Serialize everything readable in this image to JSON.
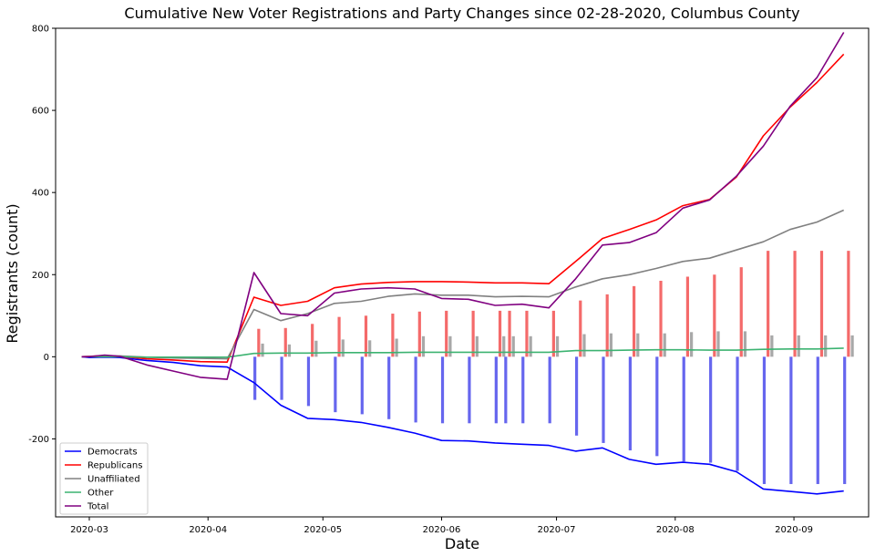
{
  "chart_data": {
    "type": "line",
    "title": "Cumulative New Voter Registrations and Party Changes since 02-28-2020, Columbus County",
    "xlabel": "Date",
    "ylabel": "Registrants (count)",
    "ylim": [
      -390,
      800
    ],
    "yticks": [
      -200,
      0,
      200,
      400,
      600,
      800
    ],
    "xlim": [
      -6.8,
      205.5
    ],
    "xticks": [
      {
        "day": 2,
        "label": "2020-03"
      },
      {
        "day": 33,
        "label": "2020-04"
      },
      {
        "day": 63,
        "label": "2020-05"
      },
      {
        "day": 94,
        "label": "2020-06"
      },
      {
        "day": 124,
        "label": "2020-07"
      },
      {
        "day": 155,
        "label": "2020-08"
      },
      {
        "day": 186,
        "label": "2020-09"
      }
    ],
    "legend_position": "lower-left",
    "series": [
      {
        "name": "Democrats",
        "color": "#0000ff",
        "x": [
          0,
          2,
          6,
          10,
          17,
          24,
          31,
          38,
          45,
          52,
          59,
          66,
          73,
          80,
          87,
          94,
          101,
          108,
          115,
          122,
          129,
          136,
          143,
          150,
          157,
          164,
          171,
          178,
          185,
          192,
          199
        ],
        "values": [
          0,
          -2,
          -1,
          -2,
          -9,
          -14,
          -22,
          -25,
          -63,
          -118,
          -150,
          -153,
          -160,
          -172,
          -186,
          -204,
          -205,
          -210,
          -213,
          -216,
          -230,
          -222,
          -250,
          -262,
          -257,
          -262,
          -280,
          -322,
          -328,
          -334,
          -327
        ]
      },
      {
        "name": "Republicans",
        "color": "#ff0000",
        "x": [
          0,
          2,
          6,
          10,
          17,
          24,
          31,
          38,
          45,
          52,
          59,
          66,
          73,
          80,
          87,
          94,
          101,
          108,
          115,
          122,
          129,
          136,
          143,
          150,
          157,
          164,
          171,
          178,
          185,
          192,
          199
        ],
        "values": [
          0,
          1,
          3,
          1,
          -5,
          -8,
          -12,
          -13,
          145,
          125,
          135,
          168,
          177,
          181,
          183,
          183,
          182,
          180,
          180,
          178,
          232,
          288,
          310,
          333,
          368,
          383,
          438,
          538,
          608,
          668,
          737
        ]
      },
      {
        "name": "Unaffiliated",
        "color": "#808080",
        "x": [
          0,
          2,
          6,
          10,
          17,
          24,
          31,
          38,
          45,
          52,
          59,
          66,
          73,
          80,
          87,
          94,
          101,
          108,
          115,
          122,
          129,
          136,
          143,
          150,
          157,
          164,
          171,
          178,
          185,
          192,
          199
        ],
        "values": [
          0,
          1,
          2,
          2,
          -1,
          -3,
          -4,
          -5,
          115,
          88,
          105,
          130,
          135,
          147,
          153,
          150,
          150,
          146,
          147,
          146,
          170,
          190,
          200,
          215,
          232,
          240,
          260,
          280,
          310,
          328,
          357
        ]
      },
      {
        "name": "Other",
        "color": "#3cb371",
        "x": [
          0,
          2,
          6,
          10,
          17,
          24,
          31,
          38,
          45,
          52,
          59,
          66,
          73,
          80,
          87,
          94,
          101,
          108,
          115,
          122,
          129,
          136,
          143,
          150,
          157,
          164,
          171,
          178,
          185,
          192,
          199
        ],
        "values": [
          0,
          0,
          0,
          0,
          -1,
          -1,
          -1,
          -1,
          8,
          9,
          9,
          10,
          10,
          10,
          11,
          11,
          11,
          11,
          11,
          11,
          15,
          15,
          16,
          17,
          17,
          16,
          16,
          18,
          19,
          19,
          21
        ]
      },
      {
        "name": "Total",
        "color": "#800080",
        "x": [
          0,
          2,
          6,
          10,
          17,
          24,
          31,
          38,
          45,
          52,
          59,
          66,
          73,
          80,
          87,
          94,
          101,
          108,
          115,
          122,
          129,
          136,
          143,
          150,
          157,
          164,
          171,
          178,
          185,
          192,
          199
        ],
        "values": [
          0,
          0,
          4,
          1,
          -20,
          -35,
          -50,
          -55,
          205,
          105,
          100,
          155,
          165,
          168,
          165,
          142,
          140,
          125,
          128,
          119,
          190,
          272,
          278,
          302,
          362,
          382,
          440,
          513,
          610,
          680,
          790
        ]
      }
    ],
    "bars": {
      "x": [
        46,
        53,
        60,
        67,
        74,
        81,
        88,
        95,
        102,
        109,
        111.5,
        116,
        123,
        130,
        137,
        144,
        151,
        158,
        165,
        172,
        179,
        186,
        193,
        200
      ],
      "democrats": [
        -105,
        -105,
        -120,
        -135,
        -140,
        -152,
        -160,
        -162,
        -162,
        -162,
        -162,
        -162,
        -162,
        -192,
        -210,
        -228,
        -242,
        -255,
        -258,
        -278,
        -310,
        -310,
        -310,
        -310
      ],
      "republicans": [
        68,
        70,
        80,
        97,
        100,
        105,
        110,
        112,
        112,
        112,
        112,
        112,
        112,
        137,
        152,
        172,
        185,
        195,
        200,
        218,
        258,
        258,
        258,
        258
      ],
      "unaffiliated": [
        32,
        30,
        39,
        42,
        40,
        44,
        50,
        50,
        50,
        50,
        50,
        50,
        50,
        55,
        57,
        57,
        57,
        60,
        62,
        62,
        52,
        52,
        52,
        52
      ],
      "colors": {
        "democrats": "#6666ee",
        "republicans": "#f46a6a",
        "unaffiliated": "#a8a8a8"
      }
    }
  }
}
